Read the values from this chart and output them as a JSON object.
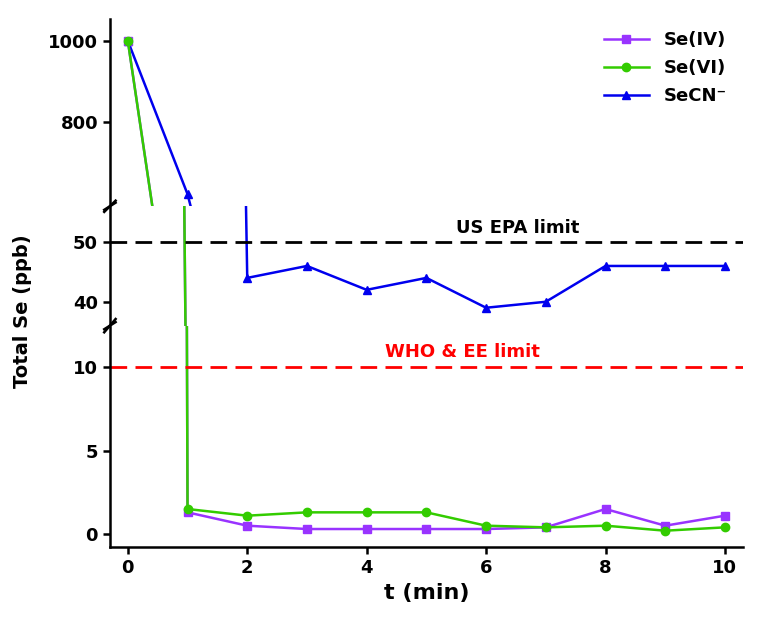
{
  "x": [
    0,
    1,
    2,
    3,
    4,
    5,
    6,
    7,
    8,
    9,
    10
  ],
  "se_iv": [
    1000,
    1.3,
    0.5,
    0.3,
    0.3,
    0.3,
    0.3,
    0.4,
    1.5,
    0.5,
    1.1
  ],
  "se_vi": [
    1000,
    1.5,
    1.1,
    1.3,
    1.3,
    1.3,
    0.5,
    0.4,
    0.5,
    0.2,
    0.4
  ],
  "se_cn": [
    1000,
    620,
    44,
    46,
    42,
    44,
    39,
    40,
    46,
    46,
    46
  ],
  "color_se_iv": "#9933FF",
  "color_se_vi": "#33CC00",
  "color_se_cn": "#0000EE",
  "epa_limit": 50,
  "who_limit": 10,
  "xlabel": "t (min)",
  "ylabel": "Total Se (ppb)",
  "legend_se_iv": "Se(IV)",
  "legend_se_vi": "Se(VI)",
  "legend_se_cn": "SeCN⁻",
  "epa_label": "US EPA limit",
  "who_label": "WHO & EE limit"
}
